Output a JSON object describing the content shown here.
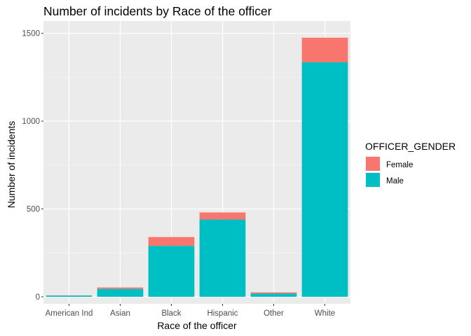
{
  "chart_data": {
    "type": "bar",
    "stacked": true,
    "title": "Number of incidents by Race of the officer",
    "xlabel": "Race of the officer",
    "ylabel": "Number of incidents",
    "categories": [
      "American Ind",
      "Asian",
      "Black",
      "Hispanic",
      "Other",
      "White"
    ],
    "series": [
      {
        "name": "Female",
        "color": "#F8766D",
        "values": [
          1,
          8,
          50,
          40,
          7,
          140
        ]
      },
      {
        "name": "Male",
        "color": "#00BFC4",
        "values": [
          7,
          45,
          290,
          440,
          18,
          1335
        ]
      }
    ],
    "ylim": [
      -40,
      1570
    ],
    "yticks": [
      0,
      500,
      1000,
      1500
    ],
    "yticklabels": [
      "0",
      "500",
      "1000",
      "1500"
    ],
    "grid": true,
    "legend": {
      "title": "OFFICER_GENDER",
      "position": "right",
      "entries": [
        "Female",
        "Male"
      ]
    }
  }
}
